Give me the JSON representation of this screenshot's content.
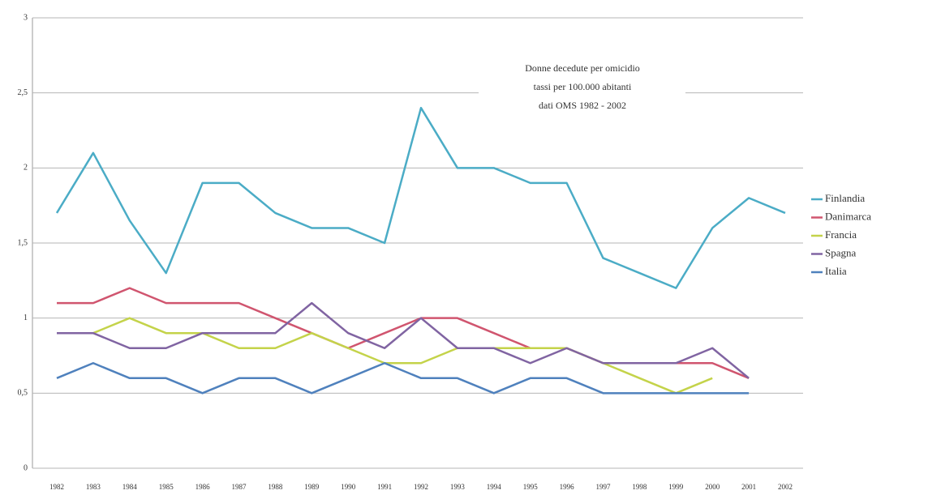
{
  "chart_data": {
    "type": "line",
    "title": [
      "Donne decedute per omicidio",
      "tassi per 100.000 abitanti",
      "dati OMS 1982 - 2002"
    ],
    "categories": [
      "1982",
      "1983",
      "1984",
      "1985",
      "1986",
      "1987",
      "1988",
      "1989",
      "1990",
      "1991",
      "1992",
      "1993",
      "1994",
      "1995",
      "1996",
      "1997",
      "1998",
      "1999",
      "2000",
      "2001",
      "2002"
    ],
    "ylim": [
      0,
      3
    ],
    "yticks": [
      0,
      {
        "value": 0.5,
        "label": "0,5"
      },
      1,
      {
        "value": 1.5,
        "label": "1,5"
      },
      2,
      {
        "value": 2.5,
        "label": "2,5"
      },
      3
    ],
    "grid": true,
    "legend": "right",
    "series": [
      {
        "name": "Finlandia",
        "color": "#4bacc6",
        "values": [
          1.7,
          2.1,
          1.65,
          1.3,
          1.9,
          1.9,
          1.7,
          1.6,
          1.6,
          1.5,
          2.4,
          2.0,
          2.0,
          1.9,
          1.9,
          1.4,
          1.3,
          1.2,
          1.6,
          1.8,
          1.7
        ]
      },
      {
        "name": "Danimarca",
        "color": "#d0556f",
        "values": [
          1.1,
          1.1,
          1.2,
          1.1,
          1.1,
          1.1,
          1.0,
          0.9,
          0.8,
          0.9,
          1.0,
          1.0,
          0.9,
          0.8,
          0.8,
          0.7,
          0.7,
          0.7,
          0.7,
          0.6,
          null
        ]
      },
      {
        "name": "Francia",
        "color": "#c4d34a",
        "values": [
          0.9,
          0.9,
          1.0,
          0.9,
          0.9,
          0.8,
          0.8,
          0.9,
          0.8,
          0.7,
          0.7,
          0.8,
          0.8,
          0.8,
          0.8,
          0.7,
          0.6,
          0.5,
          0.6,
          null,
          null
        ]
      },
      {
        "name": "Spagna",
        "color": "#8064a2",
        "values": [
          0.9,
          0.9,
          0.8,
          0.8,
          0.9,
          0.9,
          0.9,
          1.1,
          0.9,
          0.8,
          1.0,
          0.8,
          0.8,
          0.7,
          0.8,
          0.7,
          0.7,
          0.7,
          0.8,
          0.6,
          null
        ]
      },
      {
        "name": "Italia",
        "color": "#4f81bd",
        "values": [
          0.6,
          0.7,
          0.6,
          0.6,
          0.5,
          0.6,
          0.6,
          0.5,
          0.6,
          0.7,
          0.6,
          0.6,
          0.5,
          0.6,
          0.6,
          0.5,
          0.5,
          0.5,
          0.5,
          0.5,
          null
        ]
      }
    ]
  }
}
